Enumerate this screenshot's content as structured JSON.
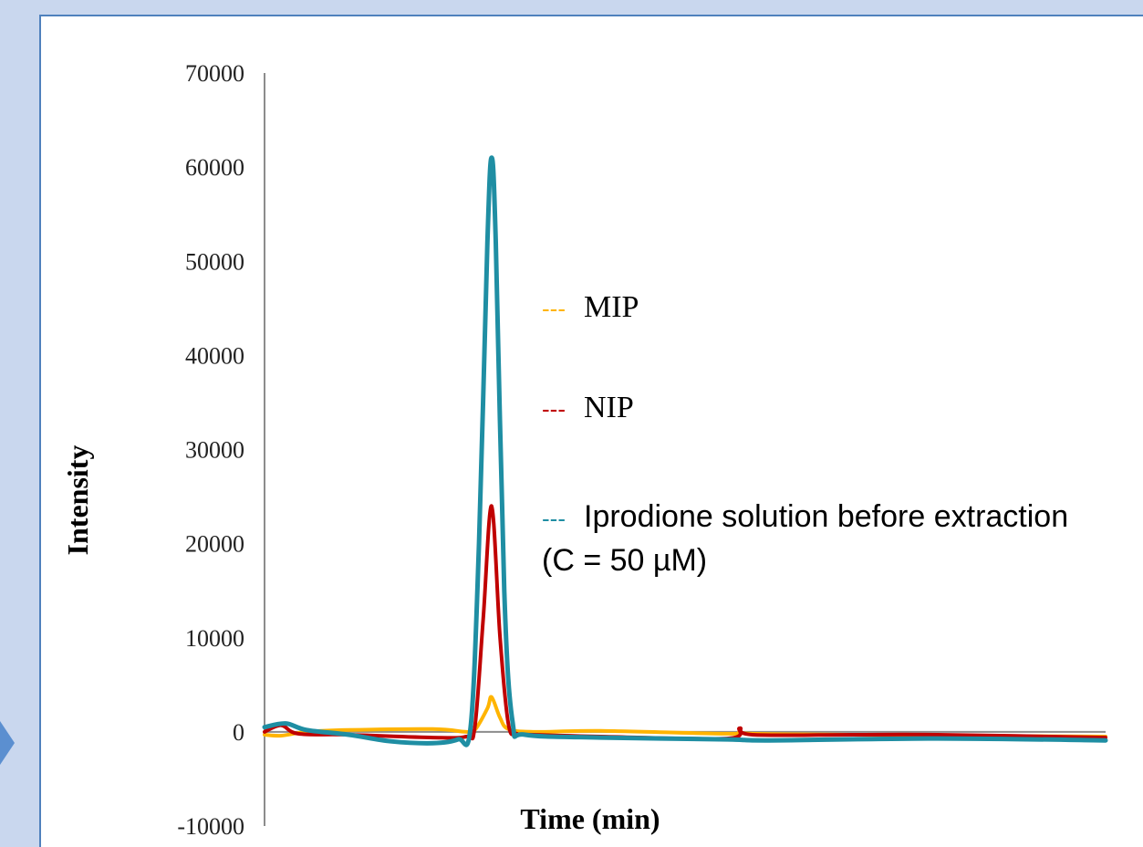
{
  "chart_data": {
    "type": "line",
    "title": "",
    "xlabel": "Time (min)",
    "ylabel": "Intensity",
    "ylim": [
      -10000,
      70000
    ],
    "yticks": [
      "-10000",
      "0",
      "10000",
      "20000",
      "30000",
      "40000",
      "50000",
      "60000",
      "70000"
    ],
    "xlim": [
      0,
      100
    ],
    "grid": false,
    "legend_placement": "right of peak",
    "legend_marker": "---",
    "series": [
      {
        "name": "MIP",
        "color": "#ffb400",
        "x": [
          0,
          2,
          5,
          10,
          20,
          24,
          25,
          26.5,
          27,
          28,
          29,
          32,
          40,
          55,
          56.5,
          58,
          70,
          80,
          100
        ],
        "y": [
          -300,
          -400,
          0,
          200,
          300,
          0,
          200,
          2500,
          3700,
          1500,
          300,
          0,
          100,
          -200,
          0,
          -200,
          -300,
          -400,
          -500
        ]
      },
      {
        "name": "NIP",
        "color": "#c00000",
        "x": [
          0,
          2,
          4,
          10,
          20,
          24,
          25,
          26,
          27,
          28,
          29,
          30,
          32,
          40,
          55,
          56.5,
          58,
          70,
          80,
          100
        ],
        "y": [
          0,
          700,
          -200,
          -300,
          -600,
          -500,
          500,
          12000,
          24000,
          10000,
          800,
          -200,
          -300,
          -500,
          -700,
          400,
          -300,
          -300,
          -300,
          -600
        ]
      },
      {
        "name": "Iprodione solution before extraction (C = 50 µM)",
        "color": "#1f8ea3",
        "x": [
          0,
          2.5,
          5,
          10,
          15,
          20,
          23,
          24.5,
          25.5,
          26.5,
          27,
          27.5,
          28.5,
          29.5,
          31,
          40,
          55,
          60,
          80,
          100
        ],
        "y": [
          500,
          900,
          200,
          -300,
          -1000,
          -1200,
          -800,
          500,
          20000,
          52000,
          61000,
          52000,
          15000,
          1000,
          -300,
          -600,
          -800,
          -900,
          -700,
          -900
        ]
      }
    ]
  }
}
